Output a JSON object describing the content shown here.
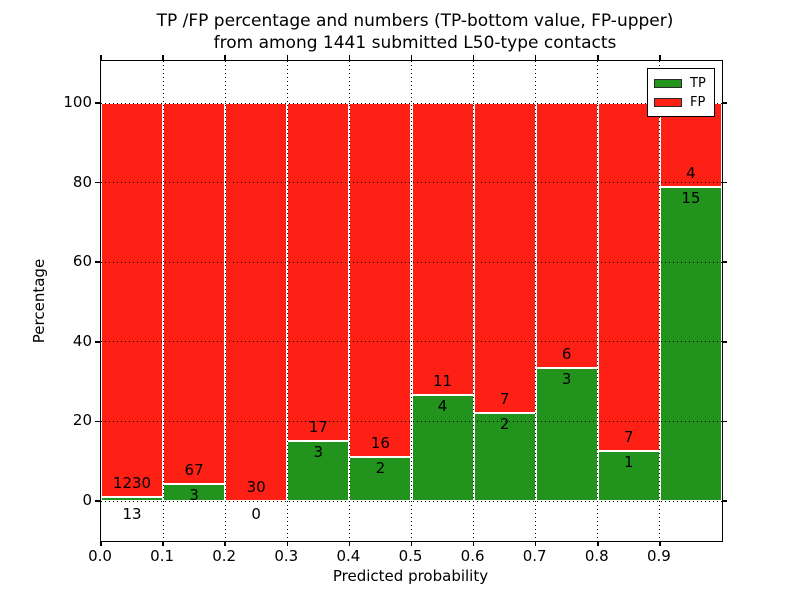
{
  "title": {
    "line1": "TP /FP percentage and numbers (TP-bottom value, FP-upper)",
    "line2": "from among 1441 submitted L50-type contacts"
  },
  "colors": {
    "tp_green": "#22941e",
    "fp_red": "#ff2015",
    "axis_black": "#000000",
    "background": "#ffffff",
    "bar_edge_white": "#ffffff"
  },
  "chart_data": {
    "type": "bar",
    "stacked": true,
    "title": "TP /FP percentage and numbers (TP-bottom value, FP-upper) from among 1441 submitted L50-type contacts",
    "xlabel": "Predicted probability",
    "ylabel": "Percentage",
    "total_contacts": 1441,
    "xlim": [
      0.0,
      1.0
    ],
    "ylim": [
      -10,
      110.5
    ],
    "grid": "dotted, both axes, on",
    "x_tick_labels": [
      "0.0",
      "0.1",
      "0.2",
      "0.3",
      "0.4",
      "0.5",
      "0.6",
      "0.7",
      "0.8",
      "0.9"
    ],
    "y_tick_values": [
      0,
      20,
      40,
      60,
      80,
      100
    ],
    "legend": {
      "position": "upper right",
      "entries": [
        {
          "label": "TP",
          "color": "#22941e"
        },
        {
          "label": "FP",
          "color": "#ff2015"
        }
      ]
    },
    "series_note": "green bottom segment = TP percentage of bin, red upper segment = FP percentage (stacks to 100); numeric labels show raw counts, FP above boundary, TP below",
    "bins": [
      {
        "range": [
          0.0,
          0.1
        ],
        "tp": 13,
        "fp": 1230,
        "tp_pct": 1.05,
        "fp_pct": 98.95
      },
      {
        "range": [
          0.1,
          0.2
        ],
        "tp": 3,
        "fp": 67,
        "tp_pct": 4.29,
        "fp_pct": 95.71
      },
      {
        "range": [
          0.2,
          0.3
        ],
        "tp": 0,
        "fp": 30,
        "tp_pct": 0.0,
        "fp_pct": 100.0
      },
      {
        "range": [
          0.3,
          0.4
        ],
        "tp": 3,
        "fp": 17,
        "tp_pct": 15.0,
        "fp_pct": 85.0
      },
      {
        "range": [
          0.4,
          0.5
        ],
        "tp": 2,
        "fp": 16,
        "tp_pct": 11.11,
        "fp_pct": 88.89
      },
      {
        "range": [
          0.5,
          0.6
        ],
        "tp": 4,
        "fp": 11,
        "tp_pct": 26.67,
        "fp_pct": 73.33
      },
      {
        "range": [
          0.6,
          0.7
        ],
        "tp": 2,
        "fp": 7,
        "tp_pct": 22.22,
        "fp_pct": 77.78
      },
      {
        "range": [
          0.7,
          0.8
        ],
        "tp": 3,
        "fp": 6,
        "tp_pct": 33.33,
        "fp_pct": 66.67
      },
      {
        "range": [
          0.8,
          0.9
        ],
        "tp": 1,
        "fp": 7,
        "tp_pct": 12.5,
        "fp_pct": 87.5
      },
      {
        "range": [
          0.9,
          1.0
        ],
        "tp": 15,
        "fp": 4,
        "tp_pct": 78.95,
        "fp_pct": 21.05
      }
    ]
  }
}
